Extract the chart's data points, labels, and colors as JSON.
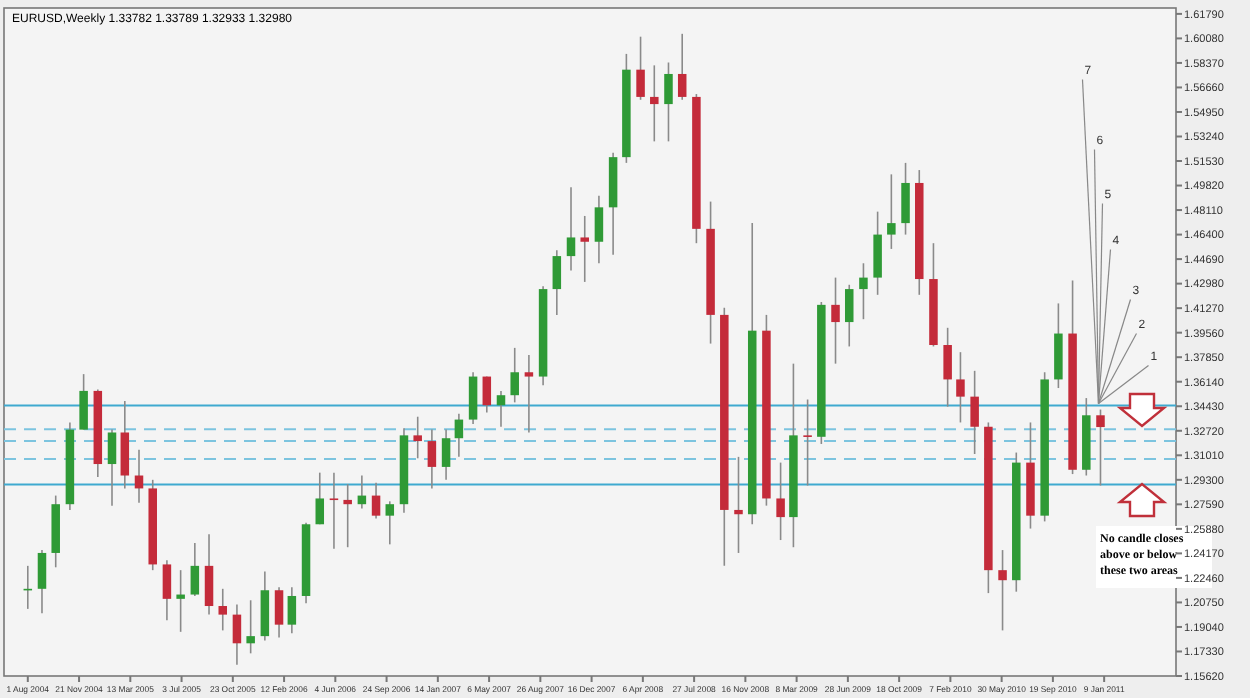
{
  "chart_data": {
    "type": "candlestick",
    "title": "EURUSD,Weekly  1.33782 1.33789 1.32933 1.32980",
    "x": [
      "2004-08",
      "2004-09",
      "2004-10",
      "2004-11",
      "2004-12",
      "2005-01",
      "2005-02",
      "2005-03",
      "2005-04",
      "2005-05",
      "2005-06",
      "2005-07",
      "2005-08",
      "2005-09",
      "2005-10",
      "2005-11",
      "2005-12",
      "2006-01",
      "2006-02",
      "2006-03",
      "2006-04",
      "2006-05",
      "2006-06",
      "2006-07",
      "2006-08",
      "2006-09",
      "2006-10",
      "2006-11",
      "2006-12",
      "2007-01",
      "2007-02",
      "2007-03",
      "2007-04",
      "2007-05",
      "2007-06",
      "2007-07",
      "2007-08",
      "2007-09",
      "2007-10",
      "2007-11",
      "2007-12",
      "2008-01",
      "2008-02",
      "2008-03",
      "2008-04",
      "2008-05",
      "2008-06",
      "2008-07",
      "2008-08",
      "2008-09",
      "2008-10",
      "2008-11",
      "2008-12",
      "2009-01",
      "2009-02",
      "2009-03",
      "2009-04",
      "2009-05",
      "2009-06",
      "2009-07",
      "2009-08",
      "2009-09",
      "2009-10",
      "2009-11",
      "2009-12",
      "2010-01",
      "2010-02",
      "2010-03",
      "2010-04",
      "2010-05",
      "2010-06",
      "2010-07",
      "2010-08",
      "2010-09",
      "2010-10",
      "2010-11",
      "2010-12",
      "2011-01"
    ],
    "ohlc": [
      [
        1.217,
        1.233,
        1.203,
        1.217
      ],
      [
        1.217,
        1.244,
        1.2,
        1.242
      ],
      [
        1.242,
        1.282,
        1.232,
        1.276
      ],
      [
        1.276,
        1.333,
        1.272,
        1.328
      ],
      [
        1.328,
        1.3667,
        1.328,
        1.355
      ],
      [
        1.355,
        1.356,
        1.295,
        1.304
      ],
      [
        1.304,
        1.328,
        1.275,
        1.326
      ],
      [
        1.326,
        1.348,
        1.287,
        1.296
      ],
      [
        1.296,
        1.314,
        1.277,
        1.287
      ],
      [
        1.287,
        1.293,
        1.23,
        1.234
      ],
      [
        1.234,
        1.237,
        1.195,
        1.21
      ],
      [
        1.21,
        1.23,
        1.187,
        1.213
      ],
      [
        1.213,
        1.249,
        1.212,
        1.233
      ],
      [
        1.233,
        1.255,
        1.199,
        1.205
      ],
      [
        1.205,
        1.217,
        1.188,
        1.199
      ],
      [
        1.199,
        1.206,
        1.164,
        1.179
      ],
      [
        1.179,
        1.209,
        1.172,
        1.184
      ],
      [
        1.184,
        1.229,
        1.181,
        1.216
      ],
      [
        1.216,
        1.218,
        1.183,
        1.192
      ],
      [
        1.192,
        1.218,
        1.186,
        1.212
      ],
      [
        1.212,
        1.263,
        1.207,
        1.262
      ],
      [
        1.262,
        1.298,
        1.262,
        1.28
      ],
      [
        1.28,
        1.298,
        1.245,
        1.279
      ],
      [
        1.279,
        1.29,
        1.246,
        1.276
      ],
      [
        1.276,
        1.296,
        1.273,
        1.282
      ],
      [
        1.282,
        1.291,
        1.266,
        1.268
      ],
      [
        1.268,
        1.278,
        1.248,
        1.276
      ],
      [
        1.276,
        1.329,
        1.27,
        1.324
      ],
      [
        1.324,
        1.337,
        1.308,
        1.32
      ],
      [
        1.32,
        1.328,
        1.287,
        1.302
      ],
      [
        1.302,
        1.328,
        1.293,
        1.322
      ],
      [
        1.322,
        1.339,
        1.309,
        1.335
      ],
      [
        1.335,
        1.368,
        1.332,
        1.365
      ],
      [
        1.365,
        1.365,
        1.34,
        1.345
      ],
      [
        1.345,
        1.355,
        1.33,
        1.352
      ],
      [
        1.352,
        1.385,
        1.347,
        1.368
      ],
      [
        1.368,
        1.38,
        1.326,
        1.365
      ],
      [
        1.365,
        1.428,
        1.359,
        1.426
      ],
      [
        1.426,
        1.453,
        1.408,
        1.449
      ],
      [
        1.449,
        1.497,
        1.439,
        1.462
      ],
      [
        1.462,
        1.477,
        1.431,
        1.459
      ],
      [
        1.459,
        1.491,
        1.444,
        1.483
      ],
      [
        1.483,
        1.521,
        1.45,
        1.518
      ],
      [
        1.518,
        1.59,
        1.514,
        1.579
      ],
      [
        1.579,
        1.602,
        1.558,
        1.56
      ],
      [
        1.56,
        1.582,
        1.529,
        1.555
      ],
      [
        1.555,
        1.584,
        1.529,
        1.576
      ],
      [
        1.576,
        1.604,
        1.558,
        1.56
      ],
      [
        1.56,
        1.562,
        1.458,
        1.468
      ],
      [
        1.468,
        1.487,
        1.388,
        1.408
      ],
      [
        1.408,
        1.413,
        1.233,
        1.272
      ],
      [
        1.272,
        1.309,
        1.242,
        1.269
      ],
      [
        1.269,
        1.472,
        1.262,
        1.397
      ],
      [
        1.397,
        1.408,
        1.275,
        1.28
      ],
      [
        1.28,
        1.305,
        1.251,
        1.267
      ],
      [
        1.267,
        1.374,
        1.246,
        1.324
      ],
      [
        1.324,
        1.349,
        1.289,
        1.323
      ],
      [
        1.323,
        1.417,
        1.318,
        1.415
      ],
      [
        1.415,
        1.434,
        1.374,
        1.403
      ],
      [
        1.403,
        1.429,
        1.386,
        1.426
      ],
      [
        1.426,
        1.444,
        1.405,
        1.434
      ],
      [
        1.434,
        1.48,
        1.422,
        1.464
      ],
      [
        1.464,
        1.506,
        1.454,
        1.472
      ],
      [
        1.472,
        1.514,
        1.464,
        1.5
      ],
      [
        1.5,
        1.509,
        1.422,
        1.433
      ],
      [
        1.433,
        1.458,
        1.386,
        1.387
      ],
      [
        1.387,
        1.399,
        1.344,
        1.363
      ],
      [
        1.363,
        1.382,
        1.333,
        1.351
      ],
      [
        1.351,
        1.369,
        1.311,
        1.33
      ],
      [
        1.33,
        1.333,
        1.214,
        1.23
      ],
      [
        1.23,
        1.244,
        1.188,
        1.223
      ],
      [
        1.223,
        1.312,
        1.215,
        1.305
      ],
      [
        1.305,
        1.333,
        1.259,
        1.268
      ],
      [
        1.268,
        1.368,
        1.264,
        1.363
      ],
      [
        1.363,
        1.416,
        1.357,
        1.395
      ],
      [
        1.395,
        1.432,
        1.297,
        1.3
      ],
      [
        1.3,
        1.35,
        1.296,
        1.338
      ],
      [
        1.338,
        1.342,
        1.289,
        1.3298
      ]
    ],
    "xlim": [
      "2004-06-10",
      "2011-06-15"
    ],
    "xticks": [
      {
        "value": "2004-08-01",
        "label": "1 Aug 2004"
      },
      {
        "value": "2004-11-21",
        "label": "21 Nov 2004"
      },
      {
        "value": "2005-03-13",
        "label": "13 Mar 2005"
      },
      {
        "value": "2005-07-03",
        "label": "3 Jul 2005"
      },
      {
        "value": "2005-10-23",
        "label": "23 Oct 2005"
      },
      {
        "value": "2006-02-12",
        "label": "12 Feb 2006"
      },
      {
        "value": "2006-06-04",
        "label": "4 Jun 2006"
      },
      {
        "value": "2006-09-24",
        "label": "24 Sep 2006"
      },
      {
        "value": "2007-01-14",
        "label": "14 Jan 2007"
      },
      {
        "value": "2007-05-06",
        "label": "6 May 2007"
      },
      {
        "value": "2007-08-26",
        "label": "26 Aug 2007"
      },
      {
        "value": "2007-12-16",
        "label": "16 Dec 2007"
      },
      {
        "value": "2008-04-06",
        "label": "6 Apr 2008"
      },
      {
        "value": "2008-07-27",
        "label": "27 Jul 2008"
      },
      {
        "value": "2008-11-16",
        "label": "16 Nov 2008"
      },
      {
        "value": "2009-03-08",
        "label": "8 Mar 2009"
      },
      {
        "value": "2009-06-28",
        "label": "28 Jun 2009"
      },
      {
        "value": "2009-10-18",
        "label": "18 Oct 2009"
      },
      {
        "value": "2010-02-07",
        "label": "7 Feb 2010"
      },
      {
        "value": "2010-05-30",
        "label": "30 May 2010"
      },
      {
        "value": "2010-09-19",
        "label": "19 Sep 2010"
      },
      {
        "value": "2011-01-09",
        "label": "9 Jan 2011"
      }
    ],
    "ylim": [
      1.1562,
      1.622
    ],
    "yticks": [
      {
        "value": 1.6179,
        "label": "1.61790"
      },
      {
        "value": 1.6008,
        "label": "1.60080"
      },
      {
        "value": 1.5837,
        "label": "1.58370"
      },
      {
        "value": 1.5666,
        "label": "1.56660"
      },
      {
        "value": 1.5495,
        "label": "1.54950"
      },
      {
        "value": 1.5324,
        "label": "1.53240"
      },
      {
        "value": 1.5153,
        "label": "1.51530"
      },
      {
        "value": 1.4982,
        "label": "1.49820"
      },
      {
        "value": 1.4811,
        "label": "1.48110"
      },
      {
        "value": 1.464,
        "label": "1.46400"
      },
      {
        "value": 1.4469,
        "label": "1.44690"
      },
      {
        "value": 1.4298,
        "label": "1.42980"
      },
      {
        "value": 1.4127,
        "label": "1.41270"
      },
      {
        "value": 1.3956,
        "label": "1.39560"
      },
      {
        "value": 1.3785,
        "label": "1.37850"
      },
      {
        "value": 1.3614,
        "label": "1.36140"
      },
      {
        "value": 1.3443,
        "label": "1.34430"
      },
      {
        "value": 1.3272,
        "label": "1.32720"
      },
      {
        "value": 1.3101,
        "label": "1.31010"
      },
      {
        "value": 1.293,
        "label": "1.29300"
      },
      {
        "value": 1.2759,
        "label": "1.27590"
      },
      {
        "value": 1.2588,
        "label": "1.25880"
      },
      {
        "value": 1.2417,
        "label": "1.24170"
      },
      {
        "value": 1.2246,
        "label": "1.22460"
      },
      {
        "value": 1.2075,
        "label": "1.20750"
      },
      {
        "value": 1.1904,
        "label": "1.19040"
      },
      {
        "value": 1.1733,
        "label": "1.17330"
      },
      {
        "value": 1.1562,
        "label": "1.15620"
      }
    ],
    "ref_lines": [
      {
        "axis": "y",
        "value": 1.3449,
        "color": "#3fa9cf",
        "line_style": "solid"
      },
      {
        "axis": "y",
        "value": 1.3283,
        "color": "#7cc4df",
        "line_style": "dashed"
      },
      {
        "axis": "y",
        "value": 1.32,
        "color": "#7cc4df",
        "line_style": "dashed"
      },
      {
        "axis": "y",
        "value": 1.3076,
        "color": "#7cc4df",
        "line_style": "dashed"
      },
      {
        "axis": "y",
        "value": 1.2897,
        "color": "#3fa9cf",
        "line_style": "solid"
      }
    ],
    "annotations": [
      {
        "text": "1",
        "x": "2011-01",
        "y": 1.342
      },
      {
        "text": "2",
        "x": "2011-01",
        "y": 1.342
      },
      {
        "text": "3",
        "x": "2011-01",
        "y": 1.342
      },
      {
        "text": "4",
        "x": "2011-01",
        "y": 1.342
      },
      {
        "text": "5",
        "x": "2011-01",
        "y": 1.342
      },
      {
        "text": "6",
        "x": "2011-01",
        "y": 1.342
      },
      {
        "text": "7",
        "x": "2011-01",
        "y": 1.342
      },
      "No candle closes above or below these two areas"
    ],
    "grid": false
  }
}
